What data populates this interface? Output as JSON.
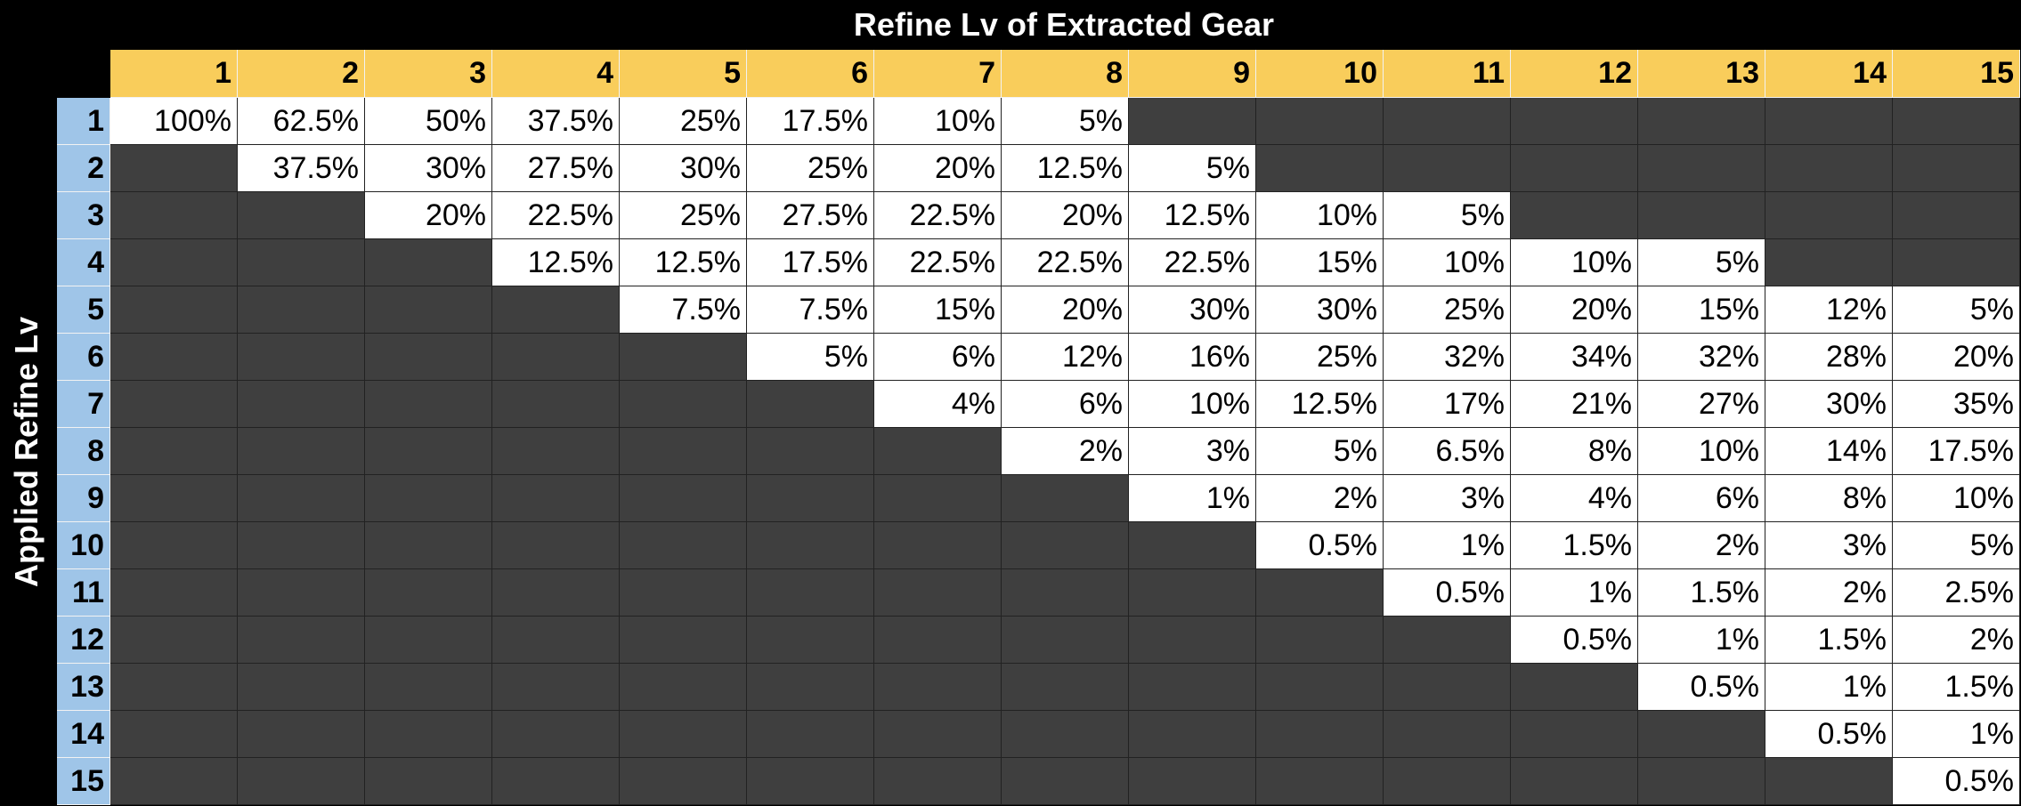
{
  "title_top": "Refine Lv of Extracted Gear",
  "title_side": "Applied Refine Lv",
  "columns": [
    "1",
    "2",
    "3",
    "4",
    "5",
    "6",
    "7",
    "8",
    "9",
    "10",
    "11",
    "12",
    "13",
    "14",
    "15"
  ],
  "rows": [
    "1",
    "2",
    "3",
    "4",
    "5",
    "6",
    "7",
    "8",
    "9",
    "10",
    "11",
    "12",
    "13",
    "14",
    "15"
  ],
  "cells": [
    [
      "100%",
      "62.5%",
      "50%",
      "37.5%",
      "25%",
      "17.5%",
      "10%",
      "5%",
      "",
      "",
      "",
      "",
      "",
      "",
      ""
    ],
    [
      "",
      "37.5%",
      "30%",
      "27.5%",
      "30%",
      "25%",
      "20%",
      "12.5%",
      "5%",
      "",
      "",
      "",
      "",
      "",
      ""
    ],
    [
      "",
      "",
      "20%",
      "22.5%",
      "25%",
      "27.5%",
      "22.5%",
      "20%",
      "12.5%",
      "10%",
      "5%",
      "",
      "",
      "",
      ""
    ],
    [
      "",
      "",
      "",
      "12.5%",
      "12.5%",
      "17.5%",
      "22.5%",
      "22.5%",
      "22.5%",
      "15%",
      "10%",
      "10%",
      "5%",
      "",
      ""
    ],
    [
      "",
      "",
      "",
      "",
      "7.5%",
      "7.5%",
      "15%",
      "20%",
      "30%",
      "30%",
      "25%",
      "20%",
      "15%",
      "12%",
      "5%"
    ],
    [
      "",
      "",
      "",
      "",
      "",
      "5%",
      "6%",
      "12%",
      "16%",
      "25%",
      "32%",
      "34%",
      "32%",
      "28%",
      "20%"
    ],
    [
      "",
      "",
      "",
      "",
      "",
      "",
      "4%",
      "6%",
      "10%",
      "12.5%",
      "17%",
      "21%",
      "27%",
      "30%",
      "35%"
    ],
    [
      "",
      "",
      "",
      "",
      "",
      "",
      "",
      "2%",
      "3%",
      "5%",
      "6.5%",
      "8%",
      "10%",
      "14%",
      "17.5%"
    ],
    [
      "",
      "",
      "",
      "",
      "",
      "",
      "",
      "",
      "1%",
      "2%",
      "3%",
      "4%",
      "6%",
      "8%",
      "10%"
    ],
    [
      "",
      "",
      "",
      "",
      "",
      "",
      "",
      "",
      "",
      "0.5%",
      "1%",
      "1.5%",
      "2%",
      "3%",
      "5%"
    ],
    [
      "",
      "",
      "",
      "",
      "",
      "",
      "",
      "",
      "",
      "",
      "0.5%",
      "1%",
      "1.5%",
      "2%",
      "2.5%"
    ],
    [
      "",
      "",
      "",
      "",
      "",
      "",
      "",
      "",
      "",
      "",
      "",
      "0.5%",
      "1%",
      "1.5%",
      "2%"
    ],
    [
      "",
      "",
      "",
      "",
      "",
      "",
      "",
      "",
      "",
      "",
      "",
      "",
      "0.5%",
      "1%",
      "1.5%"
    ],
    [
      "",
      "",
      "",
      "",
      "",
      "",
      "",
      "",
      "",
      "",
      "",
      "",
      "",
      "0.5%",
      "1%"
    ],
    [
      "",
      "",
      "",
      "",
      "",
      "",
      "",
      "",
      "",
      "",
      "",
      "",
      "",
      "",
      "0.5%"
    ]
  ],
  "colors": {
    "header_yellow": "#f9cd5b",
    "header_blue": "#9fc5e8",
    "empty_cell": "#3f3f3f",
    "value_cell": "#ffffff",
    "background": "#000000"
  }
}
